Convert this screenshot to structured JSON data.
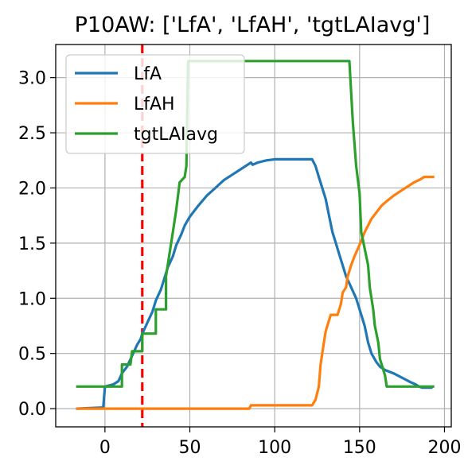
{
  "chart_data": {
    "type": "line",
    "title": "P10AW: ['LfA', 'LfAH', 'tgtLAIavg']",
    "xlabel": "",
    "ylabel": "",
    "xlim": [
      -29,
      204
    ],
    "ylim": [
      -0.165,
      3.3
    ],
    "xticks": [
      0,
      50,
      100,
      150,
      200
    ],
    "yticks": [
      0.0,
      0.5,
      1.0,
      1.5,
      2.0,
      2.5,
      3.0
    ],
    "grid": true,
    "legend_position": "upper-left",
    "vline": {
      "x": 22,
      "color": "#ff0000",
      "style": "dashed"
    },
    "series": [
      {
        "name": "LfA",
        "color": "#1f77b4",
        "points": [
          [
            -17,
            0
          ],
          [
            -1,
            0.01
          ],
          [
            0,
            0.2
          ],
          [
            5,
            0.22
          ],
          [
            8,
            0.25
          ],
          [
            10,
            0.32
          ],
          [
            13,
            0.38
          ],
          [
            16,
            0.48
          ],
          [
            19,
            0.58
          ],
          [
            21,
            0.63
          ],
          [
            22,
            0.68
          ],
          [
            25,
            0.78
          ],
          [
            28,
            0.88
          ],
          [
            30,
            0.98
          ],
          [
            33,
            1.08
          ],
          [
            35,
            1.18
          ],
          [
            37,
            1.28
          ],
          [
            40,
            1.38
          ],
          [
            42,
            1.48
          ],
          [
            45,
            1.58
          ],
          [
            47,
            1.66
          ],
          [
            50,
            1.74
          ],
          [
            55,
            1.84
          ],
          [
            60,
            1.93
          ],
          [
            65,
            2.0
          ],
          [
            70,
            2.07
          ],
          [
            75,
            2.12
          ],
          [
            80,
            2.17
          ],
          [
            84,
            2.21
          ],
          [
            86,
            2.23
          ],
          [
            87,
            2.21
          ],
          [
            90,
            2.23
          ],
          [
            95,
            2.25
          ],
          [
            100,
            2.26
          ],
          [
            110,
            2.26
          ],
          [
            122,
            2.26
          ],
          [
            124,
            2.2
          ],
          [
            126,
            2.1
          ],
          [
            128,
            2.0
          ],
          [
            130,
            1.9
          ],
          [
            132,
            1.75
          ],
          [
            134,
            1.6
          ],
          [
            136,
            1.5
          ],
          [
            138,
            1.4
          ],
          [
            140,
            1.3
          ],
          [
            142,
            1.2
          ],
          [
            145,
            1.1
          ],
          [
            148,
            1.0
          ],
          [
            150,
            0.9
          ],
          [
            153,
            0.75
          ],
          [
            155,
            0.6
          ],
          [
            157,
            0.5
          ],
          [
            160,
            0.42
          ],
          [
            162,
            0.38
          ],
          [
            165,
            0.35
          ],
          [
            170,
            0.32
          ],
          [
            175,
            0.28
          ],
          [
            180,
            0.24
          ],
          [
            183,
            0.22
          ],
          [
            185,
            0.2
          ],
          [
            187,
            0.19
          ],
          [
            193,
            0.19
          ]
        ]
      },
      {
        "name": "LfAH",
        "color": "#ff7f0e",
        "points": [
          [
            -17,
            0
          ],
          [
            85,
            0
          ],
          [
            86,
            0.03
          ],
          [
            122,
            0.03
          ],
          [
            124,
            0.08
          ],
          [
            126,
            0.2
          ],
          [
            127,
            0.4
          ],
          [
            128,
            0.5
          ],
          [
            129,
            0.6
          ],
          [
            130,
            0.7
          ],
          [
            132,
            0.8
          ],
          [
            133,
            0.85
          ],
          [
            137,
            0.85
          ],
          [
            139,
            0.95
          ],
          [
            140,
            1.05
          ],
          [
            142,
            1.1
          ],
          [
            143,
            1.2
          ],
          [
            145,
            1.3
          ],
          [
            147,
            1.38
          ],
          [
            149,
            1.45
          ],
          [
            151,
            1.52
          ],
          [
            153,
            1.6
          ],
          [
            155,
            1.66
          ],
          [
            157,
            1.72
          ],
          [
            160,
            1.78
          ],
          [
            163,
            1.84
          ],
          [
            166,
            1.88
          ],
          [
            170,
            1.93
          ],
          [
            174,
            1.97
          ],
          [
            178,
            2.01
          ],
          [
            182,
            2.05
          ],
          [
            186,
            2.08
          ],
          [
            188,
            2.1
          ],
          [
            194,
            2.1
          ]
        ]
      },
      {
        "name": "tgtLAIavg",
        "color": "#2ca02c",
        "points": [
          [
            -17,
            0.2
          ],
          [
            10,
            0.2
          ],
          [
            10,
            0.4
          ],
          [
            15,
            0.4
          ],
          [
            16,
            0.52
          ],
          [
            22,
            0.52
          ],
          [
            22,
            0.68
          ],
          [
            30,
            0.68
          ],
          [
            30,
            0.9
          ],
          [
            36,
            0.9
          ],
          [
            36,
            1.2
          ],
          [
            38,
            1.4
          ],
          [
            40,
            1.6
          ],
          [
            42,
            1.8
          ],
          [
            44,
            2.05
          ],
          [
            47,
            2.1
          ],
          [
            48,
            2.2
          ],
          [
            49,
            3.15
          ],
          [
            144,
            3.15
          ],
          [
            146,
            2.6
          ],
          [
            148,
            2.2
          ],
          [
            150,
            1.95
          ],
          [
            151,
            1.6
          ],
          [
            153,
            1.45
          ],
          [
            155,
            1.3
          ],
          [
            156,
            1.1
          ],
          [
            158,
            0.9
          ],
          [
            159,
            0.75
          ],
          [
            161,
            0.6
          ],
          [
            162,
            0.45
          ],
          [
            164,
            0.35
          ],
          [
            165,
            0.3
          ],
          [
            166,
            0.2
          ],
          [
            194,
            0.2
          ]
        ]
      }
    ]
  }
}
